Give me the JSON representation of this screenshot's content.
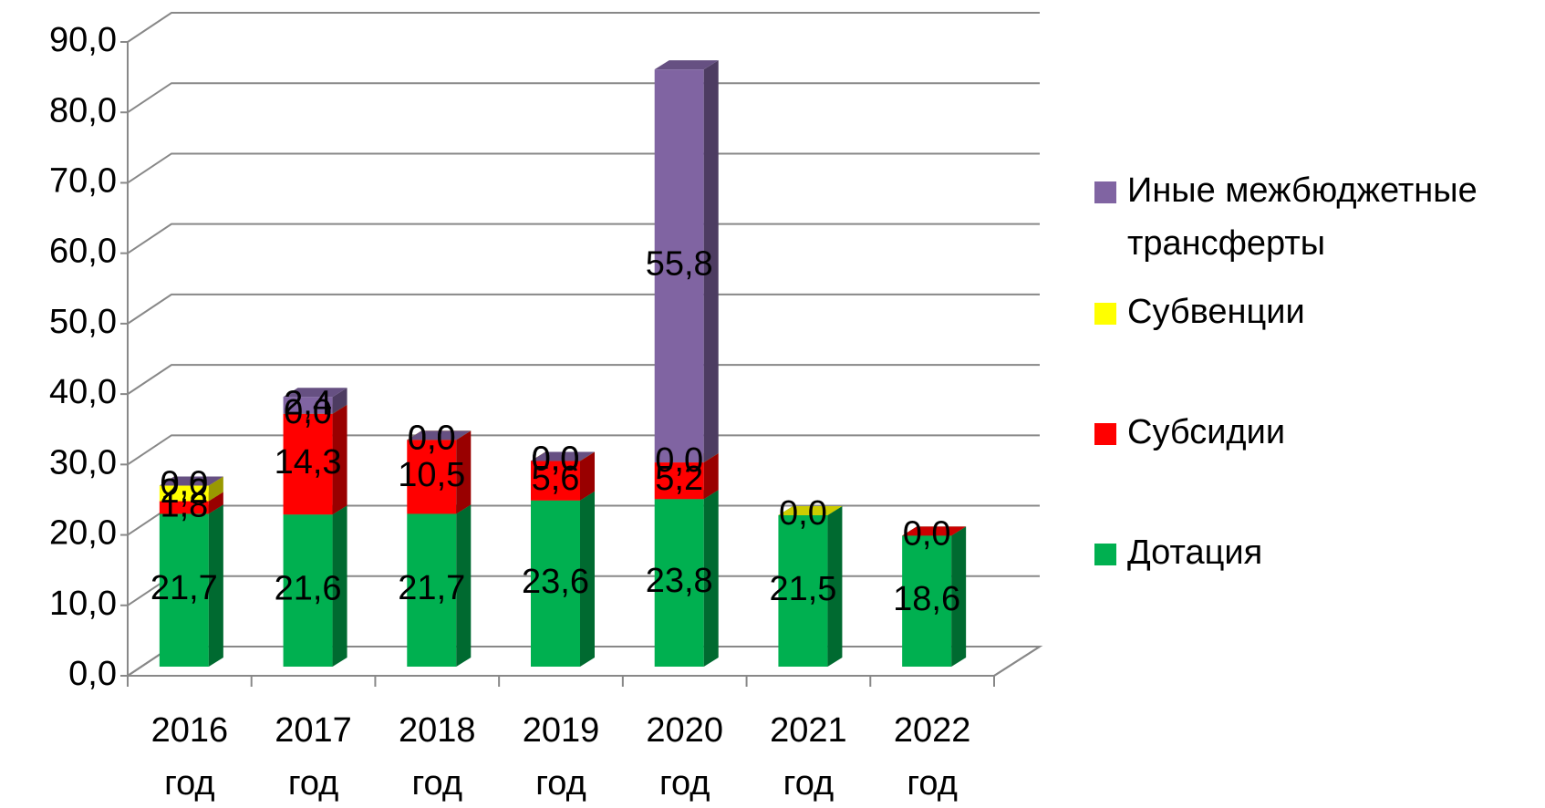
{
  "chart_data": {
    "type": "bar3d_stacked",
    "categories": [
      "2016 год",
      "2017 год",
      "2018 год",
      "2019 год",
      "2020 год",
      "2021 год",
      "2022 год"
    ],
    "series": [
      {
        "name": "Дотация",
        "color": "#00b050",
        "values": [
          21.7,
          21.6,
          21.7,
          23.6,
          23.8,
          21.5,
          18.6
        ],
        "value_labels": [
          "21,7",
          "21,6",
          "21,7",
          "23,6",
          "23,8",
          "21,5",
          "18,6"
        ]
      },
      {
        "name": "Субсидии",
        "color": "#ff0000",
        "values": [
          1.8,
          14.3,
          10.5,
          5.6,
          5.2,
          null,
          0.0
        ],
        "value_labels": [
          "1,8",
          "14,3",
          "10,5",
          "5,6",
          "5,2",
          null,
          "0,0"
        ]
      },
      {
        "name": "Субвенции",
        "color": "#ffff00",
        "values": [
          2.2,
          0.0,
          0.0,
          0.0,
          0.0,
          0.0,
          null
        ],
        "value_labels": [
          "2,2",
          "0,0",
          "0,0",
          "0,0",
          "0,0",
          "0,0",
          null
        ]
      },
      {
        "name": "Иные межбюджетные трансферты",
        "color": "#8064a2",
        "values": [
          0.0,
          2.4,
          0.0,
          0.0,
          55.8,
          null,
          null
        ],
        "value_labels": [
          "0,0",
          "2,4",
          "0,0",
          "0,0",
          "55,8",
          null,
          null
        ]
      }
    ],
    "ylim": [
      0,
      90
    ],
    "yticks": [
      {
        "value": 0,
        "label": "0,0"
      },
      {
        "value": 10,
        "label": "10,0"
      },
      {
        "value": 20,
        "label": "20,0"
      },
      {
        "value": 30,
        "label": "30,0"
      },
      {
        "value": 40,
        "label": "40,0"
      },
      {
        "value": 50,
        "label": "50,0"
      },
      {
        "value": 60,
        "label": "60,0"
      },
      {
        "value": 70,
        "label": "70,0"
      },
      {
        "value": 80,
        "label": "80,0"
      },
      {
        "value": 90,
        "label": "90,0"
      }
    ],
    "grid": true,
    "legend": "right"
  }
}
